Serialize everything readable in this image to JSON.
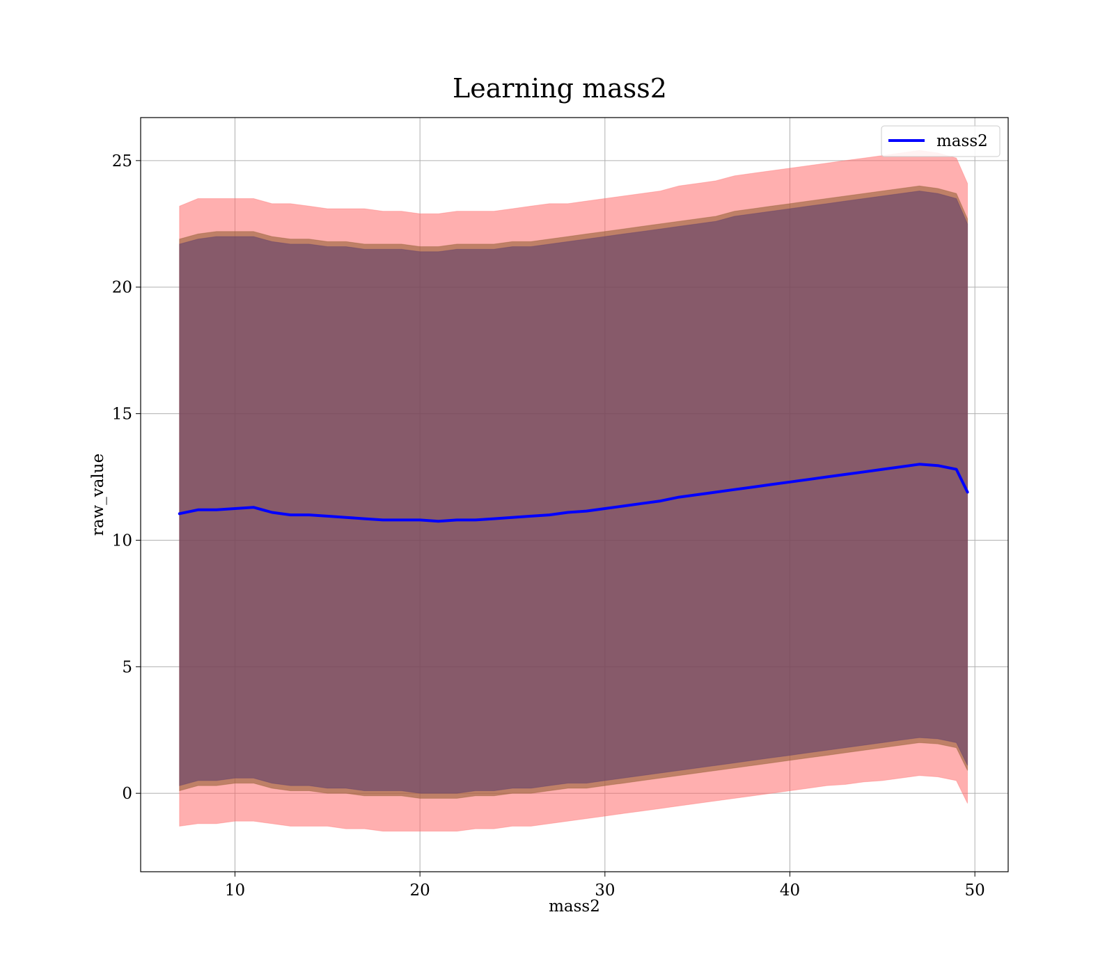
{
  "chart_data": {
    "type": "area",
    "title": "Learning mass2",
    "xlabel": "mass2",
    "ylabel": "raw_value",
    "xlim": [
      4.9,
      51.8
    ],
    "ylim": [
      -3.1,
      26.7
    ],
    "grid": true,
    "legend_placement": "top-right",
    "xticks": [
      10,
      20,
      30,
      40,
      50
    ],
    "yticks": [
      0,
      5,
      10,
      15,
      20,
      25
    ],
    "x": [
      7,
      8,
      9,
      10,
      11,
      12,
      13,
      14,
      15,
      16,
      17,
      18,
      19,
      20,
      21,
      22,
      23,
      24,
      25,
      26,
      27,
      28,
      29,
      30,
      31,
      32,
      33,
      34,
      35,
      36,
      37,
      38,
      39,
      40,
      41,
      42,
      43,
      44,
      45,
      46,
      47,
      48,
      49,
      49.6
    ],
    "series": [
      {
        "name": "mass2",
        "color": "#0000ff",
        "values": [
          11.05,
          11.2,
          11.2,
          11.25,
          11.3,
          11.1,
          11.0,
          11.0,
          10.95,
          10.9,
          10.85,
          10.8,
          10.8,
          10.8,
          10.75,
          10.8,
          10.8,
          10.85,
          10.9,
          10.95,
          11.0,
          11.1,
          11.15,
          11.25,
          11.35,
          11.45,
          11.55,
          11.7,
          11.8,
          11.9,
          12.0,
          12.1,
          12.2,
          12.3,
          12.4,
          12.5,
          12.6,
          12.7,
          12.8,
          12.9,
          13.0,
          12.95,
          12.8,
          11.9
        ]
      }
    ],
    "bands": [
      {
        "color": "#ff6666",
        "upper": [
          23.2,
          23.5,
          23.5,
          23.5,
          23.5,
          23.3,
          23.3,
          23.2,
          23.1,
          23.1,
          23.1,
          23.0,
          23.0,
          22.9,
          22.9,
          23.0,
          23.0,
          23.0,
          23.1,
          23.2,
          23.3,
          23.3,
          23.4,
          23.5,
          23.6,
          23.7,
          23.8,
          24.0,
          24.1,
          24.2,
          24.4,
          24.5,
          24.6,
          24.7,
          24.8,
          24.9,
          25.0,
          25.1,
          25.2,
          25.3,
          25.4,
          25.3,
          25.1,
          24.1
        ],
        "lower": [
          -1.3,
          -1.2,
          -1.2,
          -1.1,
          -1.1,
          -1.2,
          -1.3,
          -1.3,
          -1.3,
          -1.4,
          -1.4,
          -1.5,
          -1.5,
          -1.5,
          -1.5,
          -1.5,
          -1.4,
          -1.4,
          -1.3,
          -1.3,
          -1.2,
          -1.1,
          -1.0,
          -0.9,
          -0.8,
          -0.7,
          -0.6,
          -0.5,
          -0.4,
          -0.3,
          -0.2,
          -0.1,
          0.0,
          0.1,
          0.2,
          0.3,
          0.35,
          0.45,
          0.5,
          0.6,
          0.7,
          0.65,
          0.5,
          -0.4
        ]
      },
      {
        "color": "#8b5a2b",
        "upper": [
          21.9,
          22.1,
          22.2,
          22.2,
          22.2,
          22.0,
          21.9,
          21.9,
          21.8,
          21.8,
          21.7,
          21.7,
          21.7,
          21.6,
          21.6,
          21.7,
          21.7,
          21.7,
          21.8,
          21.8,
          21.9,
          22.0,
          22.1,
          22.2,
          22.3,
          22.4,
          22.5,
          22.6,
          22.7,
          22.8,
          23.0,
          23.1,
          23.2,
          23.3,
          23.4,
          23.5,
          23.6,
          23.7,
          23.8,
          23.9,
          24.0,
          23.9,
          23.7,
          22.7
        ],
        "lower": [
          0.1,
          0.3,
          0.3,
          0.4,
          0.4,
          0.2,
          0.1,
          0.1,
          0.0,
          0.0,
          -0.1,
          -0.1,
          -0.1,
          -0.2,
          -0.2,
          -0.2,
          -0.1,
          -0.1,
          0.0,
          0.0,
          0.1,
          0.2,
          0.2,
          0.3,
          0.4,
          0.5,
          0.6,
          0.7,
          0.8,
          0.9,
          1.0,
          1.1,
          1.2,
          1.3,
          1.4,
          1.5,
          1.6,
          1.7,
          1.8,
          1.9,
          2.0,
          1.95,
          1.8,
          0.9
        ]
      },
      {
        "color": "#5a3a6e",
        "upper": [
          21.7,
          21.9,
          22.0,
          22.0,
          22.0,
          21.8,
          21.7,
          21.7,
          21.6,
          21.6,
          21.5,
          21.5,
          21.5,
          21.4,
          21.4,
          21.5,
          21.5,
          21.5,
          21.6,
          21.6,
          21.7,
          21.8,
          21.9,
          22.0,
          22.1,
          22.2,
          22.3,
          22.4,
          22.5,
          22.6,
          22.8,
          22.9,
          23.0,
          23.1,
          23.2,
          23.3,
          23.4,
          23.5,
          23.6,
          23.7,
          23.8,
          23.7,
          23.5,
          22.5
        ],
        "lower": [
          0.3,
          0.5,
          0.5,
          0.6,
          0.6,
          0.4,
          0.3,
          0.3,
          0.2,
          0.2,
          0.1,
          0.1,
          0.1,
          0.0,
          0.0,
          0.0,
          0.1,
          0.1,
          0.2,
          0.2,
          0.3,
          0.4,
          0.4,
          0.5,
          0.6,
          0.7,
          0.8,
          0.9,
          1.0,
          1.1,
          1.2,
          1.3,
          1.4,
          1.5,
          1.6,
          1.7,
          1.8,
          1.9,
          2.0,
          2.1,
          2.2,
          2.15,
          2.0,
          1.1
        ]
      }
    ]
  }
}
